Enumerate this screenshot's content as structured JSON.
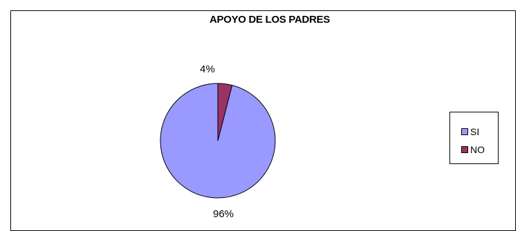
{
  "chart_data": {
    "type": "pie",
    "title": "APOYO DE LOS PADRES",
    "categories": [
      "SI",
      "NO"
    ],
    "values": [
      96,
      4
    ],
    "labels": [
      "96%",
      "4%"
    ],
    "colors": [
      "#9999FF",
      "#993366"
    ],
    "legend": "right"
  }
}
